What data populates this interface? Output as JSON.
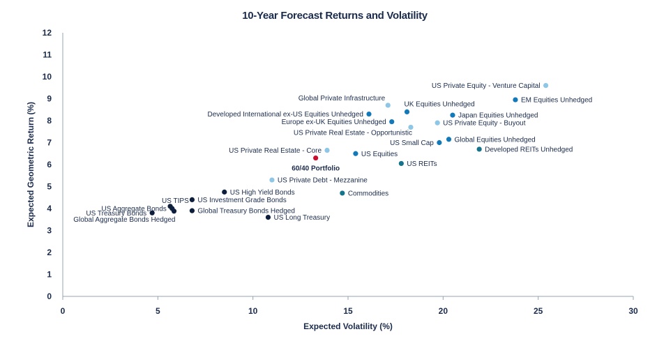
{
  "chart_data": {
    "type": "scatter",
    "title": "10-Year Forecast Returns and Volatility",
    "xlabel": "Expected Volatility (%)",
    "ylabel": "Expected Geometric Return (%)",
    "xlim": [
      0,
      30
    ],
    "ylim": [
      0,
      12
    ],
    "xticks": [
      "0",
      "5",
      "10",
      "15",
      "20",
      "25",
      "30"
    ],
    "yticks": [
      "0",
      "1",
      "2",
      "3",
      "4",
      "5",
      "6",
      "7",
      "8",
      "9",
      "10",
      "11",
      "12"
    ],
    "grid": false,
    "colors": {
      "navy": "#0d1f3c",
      "blue": "#1479b8",
      "light": "#8ec6e6",
      "teal": "#15738c",
      "red": "#c8102e"
    },
    "points": [
      {
        "label": "US Private Equity - Venture Capital",
        "x": 25.4,
        "y": 9.6,
        "color": "light",
        "label_pos": "left"
      },
      {
        "label": "EM Equities Unhedged",
        "x": 23.8,
        "y": 8.95,
        "color": "blue",
        "label_pos": "right"
      },
      {
        "label": "Global Private Infrastructure",
        "x": 17.1,
        "y": 8.7,
        "color": "light",
        "label_pos": "above-left"
      },
      {
        "label": "UK Equities Unhedged",
        "x": 18.1,
        "y": 8.4,
        "color": "blue",
        "label_pos": "above-right"
      },
      {
        "label": "Developed International ex-US Equities Unhedged",
        "x": 16.1,
        "y": 8.3,
        "color": "blue",
        "label_pos": "left"
      },
      {
        "label": "Japan Equities Unhedged",
        "x": 20.5,
        "y": 8.25,
        "color": "blue",
        "label_pos": "right"
      },
      {
        "label": "Europe ex-UK Equities Unhedged",
        "x": 17.3,
        "y": 7.95,
        "color": "blue",
        "label_pos": "left"
      },
      {
        "label": "US Private Equity - Buyout",
        "x": 19.7,
        "y": 7.9,
        "color": "light",
        "label_pos": "right"
      },
      {
        "label": "US Private Real Estate - Opportunistic",
        "x": 18.3,
        "y": 7.7,
        "color": "light",
        "label_pos": "below-left"
      },
      {
        "label": "Global Equities Unhedged",
        "x": 20.3,
        "y": 7.15,
        "color": "blue",
        "label_pos": "right"
      },
      {
        "label": "US Small Cap",
        "x": 19.8,
        "y": 7.0,
        "color": "blue",
        "label_pos": "left"
      },
      {
        "label": "Developed REITs Unhedged",
        "x": 21.9,
        "y": 6.7,
        "color": "teal",
        "label_pos": "right"
      },
      {
        "label": "US Private Real Estate - Core",
        "x": 13.9,
        "y": 6.65,
        "color": "light",
        "label_pos": "left"
      },
      {
        "label": "US Equities",
        "x": 15.4,
        "y": 6.5,
        "color": "blue",
        "label_pos": "right"
      },
      {
        "label": "60/40 Portfolio",
        "x": 13.3,
        "y": 6.3,
        "color": "red",
        "label_pos": "below",
        "bold": true
      },
      {
        "label": "US REITs",
        "x": 17.8,
        "y": 6.05,
        "color": "teal",
        "label_pos": "right"
      },
      {
        "label": "US Private Debt - Mezzanine",
        "x": 11.0,
        "y": 5.3,
        "color": "light",
        "label_pos": "right"
      },
      {
        "label": "US High Yield Bonds",
        "x": 8.5,
        "y": 4.75,
        "color": "navy",
        "label_pos": "right"
      },
      {
        "label": "Commodities",
        "x": 14.7,
        "y": 4.7,
        "color": "teal",
        "label_pos": "right"
      },
      {
        "label": "US Investment Grade Bonds",
        "x": 6.8,
        "y": 4.4,
        "color": "navy",
        "label_pos": "right"
      },
      {
        "label": "US TIPS",
        "x": 5.65,
        "y": 4.1,
        "color": "navy",
        "label_pos": "above-right"
      },
      {
        "label": "US Aggregate Bonds",
        "x": 5.75,
        "y": 4.0,
        "color": "navy",
        "label_pos": "left"
      },
      {
        "label": "Global Treasury Bonds Hedged",
        "x": 6.8,
        "y": 3.9,
        "color": "navy",
        "label_pos": "right"
      },
      {
        "label": "Global Aggregate Bonds Hedged",
        "x": 5.85,
        "y": 3.88,
        "color": "navy",
        "label_pos": "below-right"
      },
      {
        "label": "US Treasury Bonds",
        "x": 4.7,
        "y": 3.8,
        "color": "navy",
        "label_pos": "left"
      },
      {
        "label": "US Long Treasury",
        "x": 10.8,
        "y": 3.6,
        "color": "navy",
        "label_pos": "right"
      }
    ]
  }
}
